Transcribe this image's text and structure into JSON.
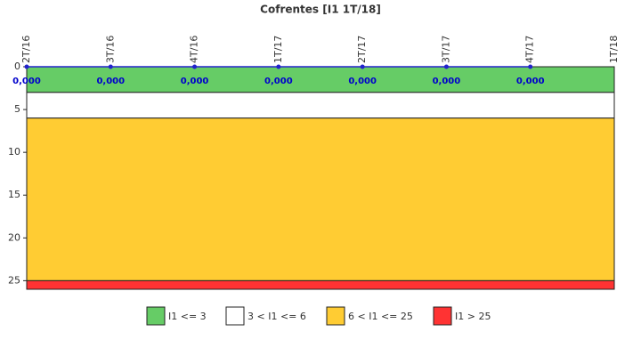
{
  "chart_data": {
    "type": "line",
    "title": "Cofrentes [I1 1T/18]",
    "categories": [
      "2T/16",
      "3T/16",
      "4T/16",
      "1T/17",
      "2T/17",
      "3T/17",
      "4T/17",
      "1T/18"
    ],
    "series": [
      {
        "color": "#2222cc",
        "values": [
          0,
          0,
          0,
          0,
          0,
          0,
          0,
          null
        ],
        "value_labels": [
          "0,000",
          "0,000",
          "0,000",
          "0,000",
          "0,000",
          "0,000",
          "0,000",
          null
        ]
      }
    ],
    "ylim": [
      0,
      26
    ],
    "yticks": [
      0,
      5,
      10,
      15,
      20,
      25
    ],
    "y_inverted": true,
    "bands": [
      {
        "name": "I1 <= 3",
        "from": 0,
        "to": 3,
        "color": "#66cc66"
      },
      {
        "name": "3 < I1 <= 6",
        "from": 3,
        "to": 6,
        "color": "#ffffff"
      },
      {
        "name": "6 < I1 <= 25",
        "from": 6,
        "to": 25,
        "color": "#ffcc33"
      },
      {
        "name": "I1 > 25",
        "from": 25,
        "to": 26,
        "color": "#ff3333"
      }
    ]
  }
}
